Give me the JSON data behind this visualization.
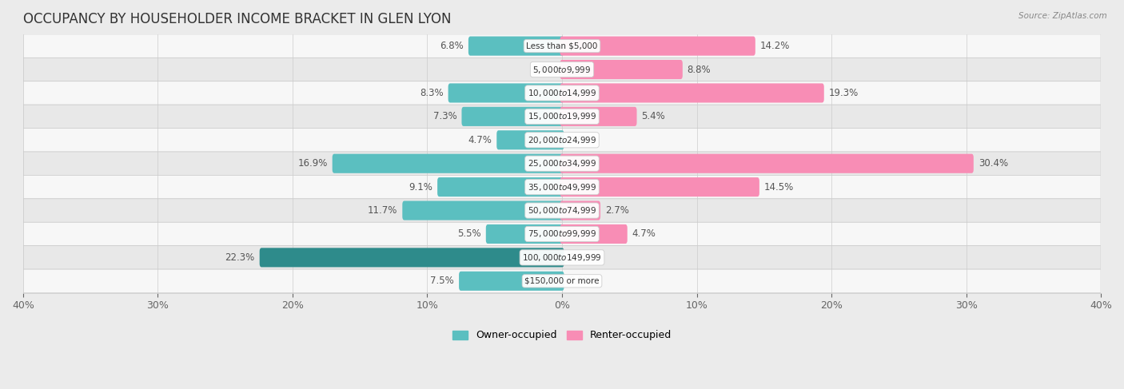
{
  "title": "OCCUPANCY BY HOUSEHOLDER INCOME BRACKET IN GLEN LYON",
  "source": "Source: ZipAtlas.com",
  "categories": [
    "Less than $5,000",
    "$5,000 to $9,999",
    "$10,000 to $14,999",
    "$15,000 to $19,999",
    "$20,000 to $24,999",
    "$25,000 to $34,999",
    "$35,000 to $49,999",
    "$50,000 to $74,999",
    "$75,000 to $99,999",
    "$100,000 to $149,999",
    "$150,000 or more"
  ],
  "owner_values": [
    6.8,
    0.0,
    8.3,
    7.3,
    4.7,
    16.9,
    9.1,
    11.7,
    5.5,
    22.3,
    7.5
  ],
  "renter_values": [
    14.2,
    8.8,
    19.3,
    5.4,
    0.0,
    30.4,
    14.5,
    2.7,
    4.7,
    0.0,
    0.0
  ],
  "owner_color": "#5bbfc0",
  "renter_color": "#f88db5",
  "owner_color_dark": "#2e8b8b",
  "bar_height": 0.52,
  "xlim": 40.0,
  "row_bg_odd": "#f7f7f7",
  "row_bg_even": "#e8e8e8",
  "title_fontsize": 12,
  "axis_fontsize": 9,
  "bar_label_fontsize": 8.5,
  "category_fontsize": 7.5
}
